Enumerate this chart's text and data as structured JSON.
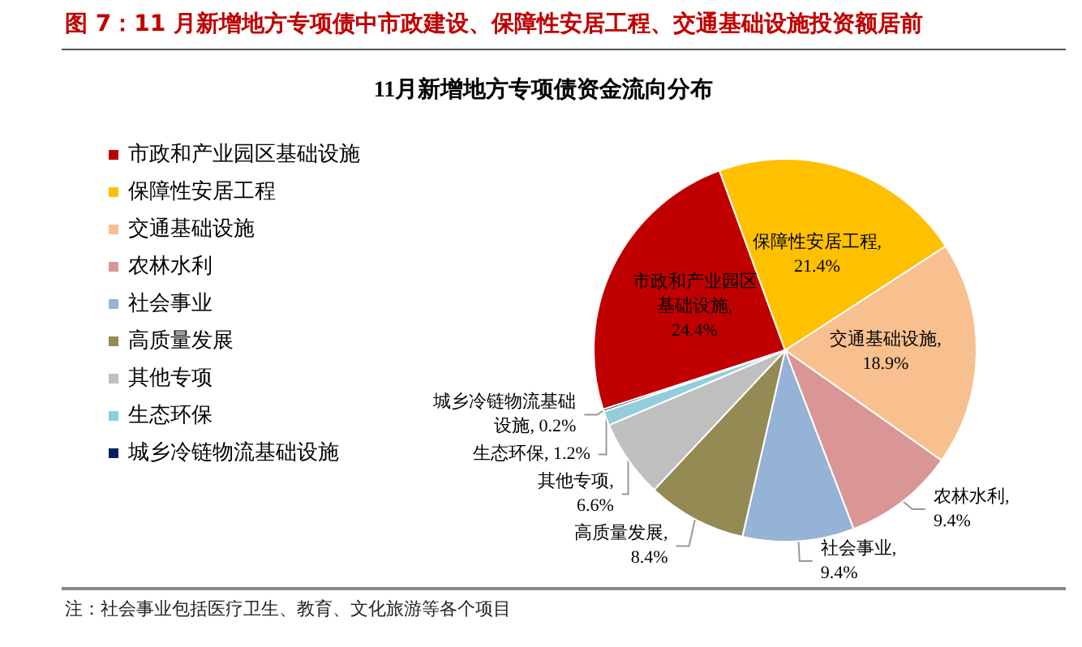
{
  "chart_data": {
    "type": "pie",
    "title": "图 7：11 月新增地方专项债中市政建设、保障性安居工程、交通基础设施投资额居前",
    "subtitle": "11月新增地方专项债资金流向分布",
    "categories": [
      "市政和产业园区基础设施",
      "保障性安居工程",
      "交通基础设施",
      "农林水利",
      "社会事业",
      "高质量发展",
      "其他专项",
      "生态环保",
      "城乡冷链物流基础设施"
    ],
    "values": [
      24.4,
      21.4,
      18.9,
      9.4,
      9.4,
      8.4,
      6.6,
      1.2,
      0.2
    ],
    "value_labels": [
      "市政和产业园区基础设施,\n24.4%",
      "保障性安居工程,\n21.4%",
      "交通基础设施,\n18.9%",
      "农林水利,\n9.4%",
      "社会事业,\n9.4%",
      "高质量发展,\n8.4%",
      "其他专项,\n6.6%",
      "生态环保, 1.2%",
      "城乡冷链物流基础设施, 0.2%"
    ],
    "colors": [
      "#c00000",
      "#ffc000",
      "#f8c08e",
      "#d99694",
      "#95b3d7",
      "#948a54",
      "#bfbfbf",
      "#92cddc",
      "#002060"
    ],
    "legend": "left",
    "annotations": [
      "注：社会事业包括医疗卫生、教育、文化旅游等各个项目"
    ]
  }
}
